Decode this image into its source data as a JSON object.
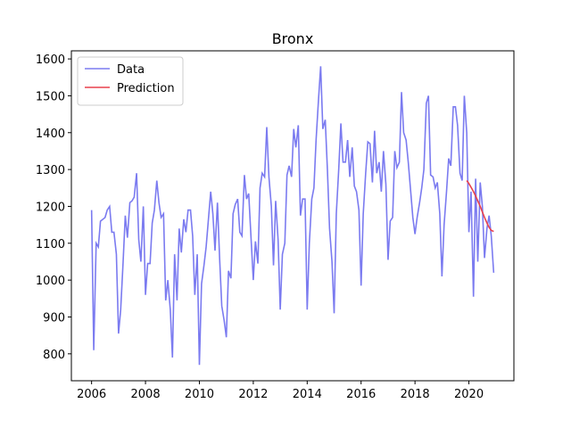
{
  "chart_data": {
    "type": "line",
    "title": "Bronx",
    "xlim": [
      2005.25,
      2021.67
    ],
    "xticks": [
      2006,
      2008,
      2010,
      2012,
      2014,
      2016,
      2018,
      2020
    ],
    "ylim": [
      727,
      1622
    ],
    "yticks": [
      800,
      900,
      1000,
      1100,
      1200,
      1300,
      1400,
      1500,
      1600
    ],
    "legend": "upper left",
    "series": [
      {
        "name": "Data",
        "color": "#7b7bf0",
        "x": [
          2006,
          2006.08,
          2006.17,
          2006.25,
          2006.33,
          2006.42,
          2006.5,
          2006.58,
          2006.67,
          2006.75,
          2006.83,
          2006.92,
          2007,
          2007.08,
          2007.17,
          2007.25,
          2007.33,
          2007.42,
          2007.5,
          2007.58,
          2007.67,
          2007.75,
          2007.83,
          2007.92,
          2008,
          2008.08,
          2008.17,
          2008.25,
          2008.33,
          2008.42,
          2008.5,
          2008.58,
          2008.67,
          2008.75,
          2008.83,
          2008.92,
          2009,
          2009.08,
          2009.17,
          2009.25,
          2009.33,
          2009.42,
          2009.5,
          2009.58,
          2009.67,
          2009.75,
          2009.83,
          2009.92,
          2010,
          2010.08,
          2010.17,
          2010.25,
          2010.33,
          2010.42,
          2010.5,
          2010.58,
          2010.67,
          2010.75,
          2010.83,
          2010.92,
          2011,
          2011.08,
          2011.17,
          2011.25,
          2011.33,
          2011.42,
          2011.5,
          2011.58,
          2011.67,
          2011.75,
          2011.83,
          2011.92,
          2012,
          2012.08,
          2012.17,
          2012.25,
          2012.33,
          2012.42,
          2012.5,
          2012.58,
          2012.67,
          2012.75,
          2012.83,
          2012.92,
          2013,
          2013.08,
          2013.17,
          2013.25,
          2013.33,
          2013.42,
          2013.5,
          2013.58,
          2013.67,
          2013.75,
          2013.83,
          2013.92,
          2014,
          2014.08,
          2014.17,
          2014.25,
          2014.33,
          2014.42,
          2014.5,
          2014.58,
          2014.67,
          2014.75,
          2014.83,
          2014.92,
          2015,
          2015.08,
          2015.17,
          2015.25,
          2015.33,
          2015.42,
          2015.5,
          2015.58,
          2015.67,
          2015.75,
          2015.83,
          2015.92,
          2016,
          2016.08,
          2016.17,
          2016.25,
          2016.33,
          2016.42,
          2016.5,
          2016.58,
          2016.67,
          2016.75,
          2016.83,
          2016.92,
          2017,
          2017.08,
          2017.17,
          2017.25,
          2017.33,
          2017.42,
          2017.5,
          2017.58,
          2017.67,
          2017.75,
          2017.83,
          2017.92,
          2018,
          2018.08,
          2018.17,
          2018.25,
          2018.33,
          2018.42,
          2018.5,
          2018.58,
          2018.67,
          2018.75,
          2018.83,
          2018.92,
          2019,
          2019.08,
          2019.17,
          2019.25,
          2019.33,
          2019.42,
          2019.5,
          2019.58,
          2019.67,
          2019.75,
          2019.83,
          2019.92,
          2020,
          2020.08,
          2020.17,
          2020.25,
          2020.33,
          2020.42,
          2020.5,
          2020.58,
          2020.67,
          2020.75,
          2020.83,
          2020.92
        ],
        "values": [
          1190,
          810,
          1100,
          1090,
          1160,
          1165,
          1170,
          1190,
          1200,
          1130,
          1130,
          1070,
          855,
          920,
          1050,
          1175,
          1115,
          1210,
          1215,
          1225,
          1290,
          1110,
          1050,
          1200,
          960,
          1045,
          1045,
          1155,
          1190,
          1270,
          1210,
          1170,
          1180,
          945,
          1000,
          920,
          790,
          1070,
          945,
          1140,
          1075,
          1165,
          1130,
          1190,
          1190,
          1120,
          960,
          1070,
          770,
          990,
          1040,
          1090,
          1160,
          1240,
          1180,
          1080,
          1210,
          1060,
          930,
          890,
          845,
          1025,
          1005,
          1180,
          1205,
          1220,
          1130,
          1120,
          1285,
          1220,
          1235,
          1110,
          1000,
          1105,
          1045,
          1250,
          1290,
          1280,
          1415,
          1280,
          1200,
          1040,
          1215,
          1110,
          920,
          1070,
          1100,
          1285,
          1310,
          1280,
          1410,
          1360,
          1420,
          1175,
          1220,
          1220,
          920,
          1100,
          1220,
          1250,
          1380,
          1490,
          1580,
          1410,
          1435,
          1300,
          1140,
          1050,
          910,
          1180,
          1300,
          1425,
          1320,
          1320,
          1380,
          1280,
          1360,
          1255,
          1240,
          1190,
          985,
          1180,
          1290,
          1375,
          1370,
          1265,
          1405,
          1290,
          1320,
          1240,
          1350,
          1260,
          1055,
          1160,
          1170,
          1350,
          1305,
          1320,
          1510,
          1400,
          1380,
          1320,
          1250,
          1170,
          1125,
          1170,
          1210,
          1250,
          1300,
          1480,
          1500,
          1285,
          1280,
          1250,
          1265,
          1180,
          1010,
          1150,
          1240,
          1330,
          1310,
          1470,
          1470,
          1420,
          1290,
          1270,
          1500,
          1400,
          1130,
          1240,
          955,
          1275,
          1050,
          1265,
          1200,
          1060,
          1140,
          1175,
          1120,
          1020
        ]
      },
      {
        "name": "Prediction",
        "color": "#e8414d",
        "x": [
          2019.92,
          2020,
          2020.08,
          2020.17,
          2020.25,
          2020.33,
          2020.42,
          2020.5,
          2020.58,
          2020.67,
          2020.75,
          2020.83,
          2020.92
        ],
        "values": [
          1270,
          1262,
          1252,
          1240,
          1228,
          1215,
          1200,
          1185,
          1170,
          1155,
          1143,
          1135,
          1132
        ]
      }
    ]
  }
}
